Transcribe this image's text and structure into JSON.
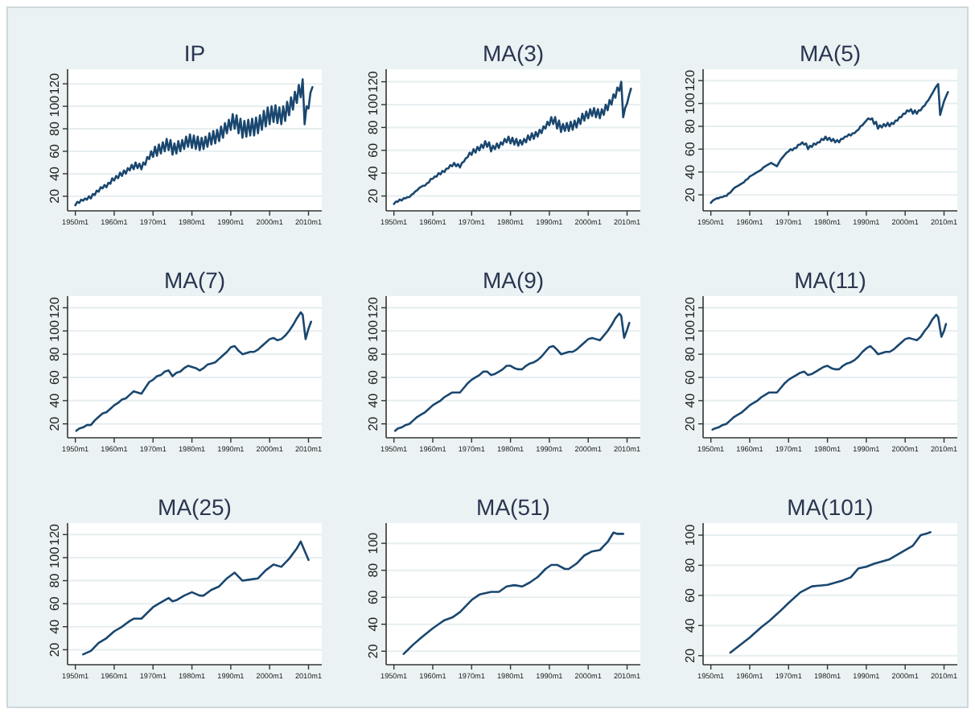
{
  "chart_data": [
    {
      "type": "line",
      "title": "IP",
      "color": "#1a476f",
      "grid": "y",
      "xlim": [
        "1948-01",
        "2013-06"
      ],
      "ylim": [
        7,
        133
      ],
      "yticks": [
        20,
        40,
        60,
        80,
        100,
        120
      ],
      "xticks": [
        {
          "value": "1950-01",
          "label": "1950m1"
        },
        {
          "value": "1960-01",
          "label": "1960m1"
        },
        {
          "value": "1970-01",
          "label": "1970m1"
        },
        {
          "value": "1980-01",
          "label": "1980m1"
        },
        {
          "value": "1990-01",
          "label": "1990m1"
        },
        {
          "value": "2000-01",
          "label": "2000m1"
        },
        {
          "value": "2010-01",
          "label": "2010m1"
        }
      ],
      "x": [
        "1950-01",
        "1950-07",
        "1951-01",
        "1951-07",
        "1952-01",
        "1952-07",
        "1953-01",
        "1953-07",
        "1954-01",
        "1954-07",
        "1955-01",
        "1955-07",
        "1956-01",
        "1956-07",
        "1957-01",
        "1957-07",
        "1958-01",
        "1958-07",
        "1959-01",
        "1959-07",
        "1960-01",
        "1960-07",
        "1961-01",
        "1961-07",
        "1962-01",
        "1962-07",
        "1963-01",
        "1963-07",
        "1964-01",
        "1964-07",
        "1965-01",
        "1965-07",
        "1966-01",
        "1966-07",
        "1967-01",
        "1967-07",
        "1968-01",
        "1968-07",
        "1969-01",
        "1969-07",
        "1970-01",
        "1970-07",
        "1971-01",
        "1971-07",
        "1972-01",
        "1972-07",
        "1973-01",
        "1973-07",
        "1974-01",
        "1974-07",
        "1975-01",
        "1975-07",
        "1976-01",
        "1976-07",
        "1977-01",
        "1977-07",
        "1978-01",
        "1978-07",
        "1979-01",
        "1979-07",
        "1980-01",
        "1980-07",
        "1981-01",
        "1981-07",
        "1982-01",
        "1982-07",
        "1983-01",
        "1983-07",
        "1984-01",
        "1984-07",
        "1985-01",
        "1985-07",
        "1986-01",
        "1986-07",
        "1987-01",
        "1987-07",
        "1988-01",
        "1988-07",
        "1989-01",
        "1989-07",
        "1990-01",
        "1990-07",
        "1991-01",
        "1991-07",
        "1992-01",
        "1992-07",
        "1993-01",
        "1993-07",
        "1994-01",
        "1994-07",
        "1995-01",
        "1995-07",
        "1996-01",
        "1996-07",
        "1997-01",
        "1997-07",
        "1998-01",
        "1998-07",
        "1999-01",
        "1999-07",
        "2000-01",
        "2000-07",
        "2001-01",
        "2001-07",
        "2002-01",
        "2002-07",
        "2003-01",
        "2003-07",
        "2004-01",
        "2004-07",
        "2005-01",
        "2005-07",
        "2006-01",
        "2006-07",
        "2007-01",
        "2007-07",
        "2008-01",
        "2008-07",
        "2009-01",
        "2009-07",
        "2010-01",
        "2010-07",
        "2011-01"
      ],
      "values": [
        12,
        15,
        14,
        17,
        16,
        18,
        17,
        20,
        18,
        22,
        21,
        25,
        24,
        28,
        27,
        30,
        28,
        32,
        31,
        36,
        34,
        38,
        36,
        41,
        38,
        43,
        40,
        45,
        43,
        48,
        44,
        50,
        45,
        49,
        44,
        50,
        48,
        55,
        53,
        60,
        55,
        64,
        56,
        66,
        58,
        68,
        60,
        71,
        61,
        70,
        57,
        67,
        58,
        69,
        60,
        70,
        62,
        73,
        64,
        75,
        63,
        74,
        62,
        73,
        61,
        72,
        62,
        73,
        64,
        76,
        66,
        78,
        67,
        79,
        69,
        82,
        72,
        85,
        76,
        88,
        79,
        93,
        80,
        92,
        76,
        89,
        72,
        87,
        73,
        88,
        74,
        89,
        74,
        90,
        76,
        92,
        79,
        96,
        82,
        99,
        84,
        100,
        86,
        101,
        85,
        99,
        84,
        100,
        87,
        104,
        92,
        108,
        97,
        113,
        103,
        119,
        108,
        124,
        84,
        100,
        98,
        112,
        117
      ]
    },
    {
      "type": "line",
      "title": "MA(3)",
      "color": "#1a476f",
      "grid": "y",
      "xlim": [
        "1948-01",
        "2013-06"
      ],
      "ylim": [
        7,
        131
      ],
      "yticks": [
        20,
        40,
        60,
        80,
        100,
        120
      ],
      "xticks": [
        {
          "value": "1950-01",
          "label": "1950m1"
        },
        {
          "value": "1960-01",
          "label": "1960m1"
        },
        {
          "value": "1970-01",
          "label": "1970m1"
        },
        {
          "value": "1980-01",
          "label": "1980m1"
        },
        {
          "value": "1990-01",
          "label": "1990m1"
        },
        {
          "value": "2000-01",
          "label": "2000m1"
        },
        {
          "value": "2010-01",
          "label": "2010m1"
        }
      ],
      "x": [
        "1950-01",
        "1950-07",
        "1951-01",
        "1951-07",
        "1952-01",
        "1952-07",
        "1953-01",
        "1953-07",
        "1954-01",
        "1954-07",
        "1955-01",
        "1955-07",
        "1956-01",
        "1956-07",
        "1957-01",
        "1957-07",
        "1958-01",
        "1958-07",
        "1959-01",
        "1959-07",
        "1960-01",
        "1960-07",
        "1961-01",
        "1961-07",
        "1962-01",
        "1962-07",
        "1963-01",
        "1963-07",
        "1964-01",
        "1964-07",
        "1965-01",
        "1965-07",
        "1966-01",
        "1966-07",
        "1967-01",
        "1967-07",
        "1968-01",
        "1968-07",
        "1969-01",
        "1969-07",
        "1970-01",
        "1970-07",
        "1971-01",
        "1971-07",
        "1972-01",
        "1972-07",
        "1973-01",
        "1973-07",
        "1974-01",
        "1974-07",
        "1975-01",
        "1975-07",
        "1976-01",
        "1976-07",
        "1977-01",
        "1977-07",
        "1978-01",
        "1978-07",
        "1979-01",
        "1979-07",
        "1980-01",
        "1980-07",
        "1981-01",
        "1981-07",
        "1982-01",
        "1982-07",
        "1983-01",
        "1983-07",
        "1984-01",
        "1984-07",
        "1985-01",
        "1985-07",
        "1986-01",
        "1986-07",
        "1987-01",
        "1987-07",
        "1988-01",
        "1988-07",
        "1989-01",
        "1989-07",
        "1990-01",
        "1990-07",
        "1991-01",
        "1991-07",
        "1992-01",
        "1992-07",
        "1993-01",
        "1993-07",
        "1994-01",
        "1994-07",
        "1995-01",
        "1995-07",
        "1996-01",
        "1996-07",
        "1997-01",
        "1997-07",
        "1998-01",
        "1998-07",
        "1999-01",
        "1999-07",
        "2000-01",
        "2000-07",
        "2001-01",
        "2001-07",
        "2002-01",
        "2002-07",
        "2003-01",
        "2003-07",
        "2004-01",
        "2004-07",
        "2005-01",
        "2005-07",
        "2006-01",
        "2006-07",
        "2007-01",
        "2007-07",
        "2008-01",
        "2008-07",
        "2009-01",
        "2009-07",
        "2010-01",
        "2010-07",
        "2011-01"
      ],
      "values": [
        13,
        15,
        15,
        17,
        16,
        18,
        18,
        19,
        19,
        21,
        22,
        24,
        25,
        27,
        28,
        29,
        29,
        31,
        32,
        35,
        35,
        37,
        37,
        40,
        39,
        42,
        41,
        44,
        44,
        47,
        46,
        49,
        46,
        48,
        45,
        49,
        50,
        53,
        54,
        58,
        56,
        61,
        58,
        63,
        60,
        65,
        62,
        68,
        63,
        67,
        59,
        64,
        61,
        66,
        62,
        67,
        65,
        70,
        67,
        72,
        66,
        71,
        65,
        70,
        64,
        69,
        65,
        70,
        67,
        73,
        69,
        75,
        70,
        76,
        72,
        78,
        75,
        81,
        79,
        85,
        82,
        89,
        83,
        89,
        79,
        86,
        76,
        83,
        77,
        84,
        77,
        85,
        78,
        86,
        80,
        88,
        83,
        92,
        86,
        94,
        88,
        96,
        90,
        97,
        89,
        96,
        88,
        96,
        91,
        100,
        95,
        104,
        100,
        109,
        106,
        115,
        112,
        120,
        89,
        97,
        101,
        108,
        114
      ]
    },
    {
      "type": "line",
      "title": "MA(5)",
      "color": "#1a476f",
      "grid": "y",
      "xlim": [
        "1948-01",
        "2013-06"
      ],
      "ylim": [
        6,
        130
      ],
      "yticks": [
        20,
        40,
        60,
        80,
        100,
        120
      ],
      "xticks": [
        {
          "value": "1950-01",
          "label": "1950m1"
        },
        {
          "value": "1960-01",
          "label": "1960m1"
        },
        {
          "value": "1970-01",
          "label": "1970m1"
        },
        {
          "value": "1980-01",
          "label": "1980m1"
        },
        {
          "value": "1990-01",
          "label": "1990m1"
        },
        {
          "value": "2000-01",
          "label": "2000m1"
        },
        {
          "value": "2010-01",
          "label": "2010m1"
        }
      ],
      "x": [
        "1950-01",
        "1950-07",
        "1951-01",
        "1951-07",
        "1952-01",
        "1952-07",
        "1953-01",
        "1953-07",
        "1954-01",
        "1954-07",
        "1955-01",
        "1955-07",
        "1956-01",
        "1956-07",
        "1957-01",
        "1957-07",
        "1958-01",
        "1958-07",
        "1959-01",
        "1959-07",
        "1960-01",
        "1960-07",
        "1961-01",
        "1961-07",
        "1962-01",
        "1962-07",
        "1963-01",
        "1963-07",
        "1964-01",
        "1964-07",
        "1965-01",
        "1965-07",
        "1966-01",
        "1966-07",
        "1967-01",
        "1967-07",
        "1968-01",
        "1968-07",
        "1969-01",
        "1969-07",
        "1970-01",
        "1970-07",
        "1971-01",
        "1971-07",
        "1972-01",
        "1972-07",
        "1973-01",
        "1973-07",
        "1974-01",
        "1974-07",
        "1975-01",
        "1975-07",
        "1976-01",
        "1976-07",
        "1977-01",
        "1977-07",
        "1978-01",
        "1978-07",
        "1979-01",
        "1979-07",
        "1980-01",
        "1980-07",
        "1981-01",
        "1981-07",
        "1982-01",
        "1982-07",
        "1983-01",
        "1983-07",
        "1984-01",
        "1984-07",
        "1985-01",
        "1985-07",
        "1986-01",
        "1986-07",
        "1987-01",
        "1987-07",
        "1988-01",
        "1988-07",
        "1989-01",
        "1989-07",
        "1990-01",
        "1990-07",
        "1991-01",
        "1991-07",
        "1992-01",
        "1992-07",
        "1993-01",
        "1993-07",
        "1994-01",
        "1994-07",
        "1995-01",
        "1995-07",
        "1996-01",
        "1996-07",
        "1997-01",
        "1997-07",
        "1998-01",
        "1998-07",
        "1999-01",
        "1999-07",
        "2000-01",
        "2000-07",
        "2001-01",
        "2001-07",
        "2002-01",
        "2002-07",
        "2003-01",
        "2003-07",
        "2004-01",
        "2004-07",
        "2005-01",
        "2005-07",
        "2006-01",
        "2006-07",
        "2007-01",
        "2007-07",
        "2008-01",
        "2008-07",
        "2009-01",
        "2009-07",
        "2010-01",
        "2010-07",
        "2011-01"
      ],
      "values": [
        13,
        15,
        16,
        17,
        17,
        18,
        18,
        19,
        19,
        21,
        22,
        24,
        26,
        27,
        28,
        29,
        30,
        31,
        33,
        34,
        36,
        37,
        38,
        39,
        40,
        41,
        42,
        44,
        45,
        46,
        47,
        48,
        47,
        46,
        45,
        48,
        51,
        53,
        55,
        57,
        58,
        60,
        59,
        61,
        61,
        64,
        64,
        66,
        64,
        65,
        60,
        63,
        62,
        65,
        64,
        66,
        66,
        69,
        68,
        71,
        68,
        70,
        67,
        69,
        66,
        68,
        66,
        69,
        69,
        71,
        71,
        73,
        72,
        74,
        74,
        76,
        77,
        80,
        81,
        83,
        85,
        87,
        86,
        87,
        82,
        84,
        78,
        81,
        79,
        82,
        80,
        83,
        80,
        83,
        82,
        85,
        85,
        88,
        88,
        91,
        91,
        94,
        93,
        95,
        91,
        94,
        91,
        94,
        94,
        97,
        98,
        101,
        103,
        106,
        109,
        112,
        115,
        117,
        90,
        96,
        102,
        106,
        110
      ]
    },
    {
      "type": "line",
      "title": "MA(7)",
      "color": "#1a476f",
      "grid": "y",
      "xlim": [
        "1948-01",
        "2013-06"
      ],
      "ylim": [
        8,
        130
      ],
      "yticks": [
        20,
        40,
        60,
        80,
        100,
        120
      ],
      "xticks": [
        {
          "value": "1950-01",
          "label": "1950m1"
        },
        {
          "value": "1960-01",
          "label": "1960m1"
        },
        {
          "value": "1970-01",
          "label": "1970m1"
        },
        {
          "value": "1980-01",
          "label": "1980m1"
        },
        {
          "value": "1990-01",
          "label": "1990m1"
        },
        {
          "value": "2000-01",
          "label": "2000m1"
        },
        {
          "value": "2010-01",
          "label": "2010m1"
        }
      ],
      "x": [
        "1950-04",
        "1951-01",
        "1952-01",
        "1953-01",
        "1954-01",
        "1955-01",
        "1956-01",
        "1957-01",
        "1958-01",
        "1959-01",
        "1960-01",
        "1961-01",
        "1962-01",
        "1963-01",
        "1964-01",
        "1965-01",
        "1966-01",
        "1967-01",
        "1968-01",
        "1969-01",
        "1970-01",
        "1971-01",
        "1972-01",
        "1973-01",
        "1974-01",
        "1975-01",
        "1976-01",
        "1977-01",
        "1978-01",
        "1979-01",
        "1980-01",
        "1981-01",
        "1982-01",
        "1983-01",
        "1984-01",
        "1985-01",
        "1986-01",
        "1987-01",
        "1988-01",
        "1989-01",
        "1990-01",
        "1991-01",
        "1992-01",
        "1993-01",
        "1994-01",
        "1995-01",
        "1996-01",
        "1997-01",
        "1998-01",
        "1999-01",
        "2000-01",
        "2001-01",
        "2002-01",
        "2003-01",
        "2004-01",
        "2005-01",
        "2006-01",
        "2007-01",
        "2008-01",
        "2008-07",
        "2009-04",
        "2010-01",
        "2010-09"
      ],
      "values": [
        14,
        16,
        17,
        19,
        19,
        23,
        26,
        29,
        30,
        33,
        36,
        38,
        41,
        42,
        45,
        48,
        47,
        46,
        51,
        56,
        58,
        61,
        62,
        65,
        66,
        61,
        64,
        65,
        68,
        70,
        69,
        68,
        66,
        68,
        71,
        72,
        73,
        76,
        79,
        82,
        86,
        87,
        83,
        80,
        81,
        82,
        82,
        84,
        87,
        90,
        93,
        94,
        92,
        93,
        96,
        100,
        105,
        111,
        116,
        114,
        93,
        102,
        108
      ]
    },
    {
      "type": "line",
      "title": "MA(9)",
      "color": "#1a476f",
      "grid": "y",
      "xlim": [
        "1948-01",
        "2013-06"
      ],
      "ylim": [
        8,
        130
      ],
      "yticks": [
        20,
        40,
        60,
        80,
        100,
        120
      ],
      "xticks": [
        {
          "value": "1950-01",
          "label": "1950m1"
        },
        {
          "value": "1960-01",
          "label": "1960m1"
        },
        {
          "value": "1970-01",
          "label": "1970m1"
        },
        {
          "value": "1980-01",
          "label": "1980m1"
        },
        {
          "value": "1990-01",
          "label": "1990m1"
        },
        {
          "value": "2000-01",
          "label": "2000m1"
        },
        {
          "value": "2010-01",
          "label": "2010m1"
        }
      ],
      "x": [
        "1950-05",
        "1951-01",
        "1952-01",
        "1953-01",
        "1954-01",
        "1955-01",
        "1956-01",
        "1957-01",
        "1958-01",
        "1959-01",
        "1960-01",
        "1961-01",
        "1962-01",
        "1963-01",
        "1964-01",
        "1965-01",
        "1966-01",
        "1967-01",
        "1968-01",
        "1969-01",
        "1970-01",
        "1971-01",
        "1972-01",
        "1973-01",
        "1974-01",
        "1975-01",
        "1976-01",
        "1977-01",
        "1978-01",
        "1979-01",
        "1980-01",
        "1981-01",
        "1982-01",
        "1983-01",
        "1984-01",
        "1985-01",
        "1986-01",
        "1987-01",
        "1988-01",
        "1989-01",
        "1990-01",
        "1991-01",
        "1992-01",
        "1993-01",
        "1994-01",
        "1995-01",
        "1996-01",
        "1997-01",
        "1998-01",
        "1999-01",
        "2000-01",
        "2001-01",
        "2002-01",
        "2003-01",
        "2004-01",
        "2005-01",
        "2006-01",
        "2007-01",
        "2008-01",
        "2008-07",
        "2009-04",
        "2010-01",
        "2010-08"
      ],
      "values": [
        14,
        16,
        17,
        19,
        20,
        23,
        26,
        28,
        30,
        33,
        36,
        38,
        40,
        43,
        45,
        47,
        47,
        47,
        51,
        55,
        58,
        60,
        62,
        65,
        65,
        62,
        63,
        65,
        67,
        70,
        70,
        68,
        67,
        67,
        70,
        72,
        73,
        75,
        78,
        82,
        86,
        87,
        84,
        80,
        81,
        82,
        82,
        84,
        87,
        90,
        93,
        94,
        93,
        92,
        96,
        100,
        105,
        111,
        115,
        113,
        94,
        101,
        107
      ]
    },
    {
      "type": "line",
      "title": "MA(11)",
      "color": "#1a476f",
      "grid": "y",
      "xlim": [
        "1948-01",
        "2013-06"
      ],
      "ylim": [
        8,
        130
      ],
      "yticks": [
        20,
        40,
        60,
        80,
        100,
        120
      ],
      "xticks": [
        {
          "value": "1950-01",
          "label": "1950m1"
        },
        {
          "value": "1960-01",
          "label": "1960m1"
        },
        {
          "value": "1970-01",
          "label": "1970m1"
        },
        {
          "value": "1980-01",
          "label": "1980m1"
        },
        {
          "value": "1990-01",
          "label": "1990m1"
        },
        {
          "value": "2000-01",
          "label": "2000m1"
        },
        {
          "value": "2010-01",
          "label": "2010m1"
        }
      ],
      "x": [
        "1950-06",
        "1951-01",
        "1952-01",
        "1953-01",
        "1954-01",
        "1955-01",
        "1956-01",
        "1957-01",
        "1958-01",
        "1959-01",
        "1960-01",
        "1961-01",
        "1962-01",
        "1963-01",
        "1964-01",
        "1965-01",
        "1966-01",
        "1967-01",
        "1968-01",
        "1969-01",
        "1970-01",
        "1971-01",
        "1972-01",
        "1973-01",
        "1974-01",
        "1975-01",
        "1976-01",
        "1977-01",
        "1978-01",
        "1979-01",
        "1980-01",
        "1981-01",
        "1982-01",
        "1983-01",
        "1984-01",
        "1985-01",
        "1986-01",
        "1987-01",
        "1988-01",
        "1989-01",
        "1990-01",
        "1991-01",
        "1992-01",
        "1993-01",
        "1994-01",
        "1995-01",
        "1996-01",
        "1997-01",
        "1998-01",
        "1999-01",
        "2000-01",
        "2001-01",
        "2002-01",
        "2003-01",
        "2004-01",
        "2005-01",
        "2006-01",
        "2007-01",
        "2008-01",
        "2008-07",
        "2009-05",
        "2010-01",
        "2010-07"
      ],
      "values": [
        15,
        16,
        17,
        19,
        20,
        23,
        26,
        28,
        30,
        33,
        36,
        38,
        40,
        43,
        45,
        47,
        47,
        47,
        51,
        55,
        58,
        60,
        62,
        64,
        65,
        62,
        63,
        65,
        67,
        69,
        70,
        68,
        67,
        67,
        70,
        72,
        73,
        75,
        78,
        82,
        85,
        87,
        84,
        80,
        81,
        82,
        82,
        84,
        87,
        90,
        93,
        94,
        93,
        92,
        95,
        100,
        104,
        110,
        114,
        112,
        95,
        100,
        106
      ]
    },
    {
      "type": "line",
      "title": "MA(25)",
      "color": "#1a476f",
      "grid": "y",
      "xlim": [
        "1948-01",
        "2013-06"
      ],
      "ylim": [
        7,
        130
      ],
      "yticks": [
        20,
        40,
        60,
        80,
        100,
        120
      ],
      "xticks": [
        {
          "value": "1950-01",
          "label": "1950m1"
        },
        {
          "value": "1960-01",
          "label": "1960m1"
        },
        {
          "value": "1970-01",
          "label": "1970m1"
        },
        {
          "value": "1980-01",
          "label": "1980m1"
        },
        {
          "value": "1990-01",
          "label": "1990m1"
        },
        {
          "value": "2000-01",
          "label": "2000m1"
        },
        {
          "value": "2010-01",
          "label": "2010m1"
        }
      ],
      "x": [
        "1952-01",
        "1954-01",
        "1956-01",
        "1958-01",
        "1960-01",
        "1962-01",
        "1964-01",
        "1965-01",
        "1967-01",
        "1970-01",
        "1972-01",
        "1974-01",
        "1975-01",
        "1976-01",
        "1978-01",
        "1980-01",
        "1982-01",
        "1983-01",
        "1985-01",
        "1987-01",
        "1989-01",
        "1991-01",
        "1993-01",
        "1995-01",
        "1997-01",
        "1999-01",
        "2001-01",
        "2003-01",
        "2005-01",
        "2007-01",
        "2008-01",
        "2010-01"
      ],
      "values": [
        16,
        19,
        26,
        30,
        36,
        40,
        45,
        47,
        47,
        57,
        61,
        65,
        62,
        63,
        67,
        70,
        67,
        67,
        72,
        75,
        82,
        87,
        80,
        81,
        82,
        89,
        94,
        92,
        99,
        108,
        114,
        98
      ]
    },
    {
      "type": "line",
      "title": "MA(51)",
      "color": "#1a476f",
      "grid": "y",
      "xlim": [
        "1948-01",
        "2013-06"
      ],
      "ylim": [
        10,
        115
      ],
      "yticks": [
        20,
        40,
        60,
        80,
        100
      ],
      "xticks": [
        {
          "value": "1950-01",
          "label": "1950m1"
        },
        {
          "value": "1960-01",
          "label": "1960m1"
        },
        {
          "value": "1970-01",
          "label": "1970m1"
        },
        {
          "value": "1980-01",
          "label": "1980m1"
        },
        {
          "value": "1990-01",
          "label": "1990m1"
        },
        {
          "value": "2000-01",
          "label": "2000m1"
        },
        {
          "value": "2010-01",
          "label": "2010m1"
        }
      ],
      "x": [
        "1952-07",
        "1955-01",
        "1957-01",
        "1960-01",
        "1962-01",
        "1963-01",
        "1965-01",
        "1967-01",
        "1970-01",
        "1972-01",
        "1975-01",
        "1977-01",
        "1979-01",
        "1981-01",
        "1983-01",
        "1985-01",
        "1987-01",
        "1989-01",
        "1990-07",
        "1992-01",
        "1994-01",
        "1995-01",
        "1997-01",
        "1999-01",
        "2001-01",
        "2003-01",
        "2005-01",
        "2006-07",
        "2007-07",
        "2009-01"
      ],
      "values": [
        18,
        25,
        30,
        37,
        41,
        43,
        45,
        49,
        58,
        62,
        64,
        64,
        68,
        69,
        68,
        71,
        75,
        81,
        84,
        84,
        81,
        81,
        85,
        91,
        94,
        95,
        101,
        108,
        107,
        107
      ]
    },
    {
      "type": "line",
      "title": "MA(101)",
      "color": "#1a476f",
      "grid": "y",
      "xlim": [
        "1948-01",
        "2013-06"
      ],
      "ylim": [
        14,
        108
      ],
      "yticks": [
        20,
        40,
        60,
        80,
        100
      ],
      "xticks": [
        {
          "value": "1950-01",
          "label": "1950m1"
        },
        {
          "value": "1960-01",
          "label": "1960m1"
        },
        {
          "value": "1970-01",
          "label": "1970m1"
        },
        {
          "value": "1980-01",
          "label": "1980m1"
        },
        {
          "value": "1990-01",
          "label": "1990m1"
        },
        {
          "value": "2000-01",
          "label": "2000m1"
        },
        {
          "value": "2010-01",
          "label": "2010m1"
        }
      ],
      "x": [
        "1955-01",
        "1957-01",
        "1960-01",
        "1963-01",
        "1965-01",
        "1968-01",
        "1970-01",
        "1973-01",
        "1976-01",
        "1980-01",
        "1984-01",
        "1986-01",
        "1988-01",
        "1990-01",
        "1992-01",
        "1996-01",
        "2000-01",
        "2002-01",
        "2004-01",
        "2005-07",
        "2006-07"
      ],
      "values": [
        22,
        26,
        32,
        39,
        43,
        50,
        55,
        62,
        66,
        67,
        70,
        72,
        78,
        79,
        81,
        84,
        90,
        93,
        100,
        101,
        102
      ]
    }
  ]
}
